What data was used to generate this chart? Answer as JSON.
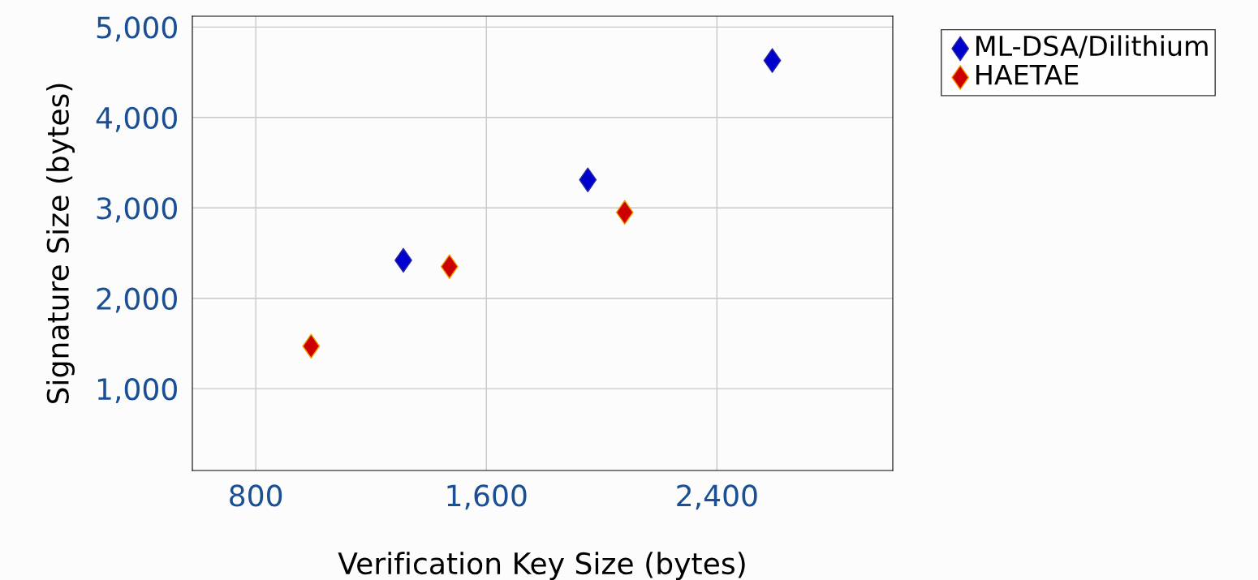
{
  "chart_data": {
    "type": "scatter",
    "xlabel": "Verification Key Size (bytes)",
    "ylabel": "Signature Size (bytes)",
    "series": [
      {
        "name": "ML-DSA/Dilithium",
        "color": "#0000cc",
        "x": [
          1312,
          1952,
          2592
        ],
        "values": [
          2420,
          3310,
          4630
        ]
      },
      {
        "name": "HAETAE",
        "color": "#cc0000",
        "x": [
          992,
          1472,
          2080
        ],
        "values": [
          1470,
          2350,
          2950
        ]
      }
    ],
    "xlim": [
      580,
      3010
    ],
    "ylim": [
      95,
      5120
    ],
    "xticks": [
      {
        "value": 800,
        "label": "800"
      },
      {
        "value": 1600,
        "label": "1,600"
      },
      {
        "value": 2400,
        "label": "2,400"
      }
    ],
    "yticks": [
      {
        "value": 1000,
        "label": "1,000"
      },
      {
        "value": 2000,
        "label": "2,000"
      },
      {
        "value": 3000,
        "label": "3,000"
      },
      {
        "value": 4000,
        "label": "4,000"
      },
      {
        "value": 5000,
        "label": "5,000"
      }
    ],
    "grid": true,
    "legend": "top right",
    "marker": "diamond"
  }
}
